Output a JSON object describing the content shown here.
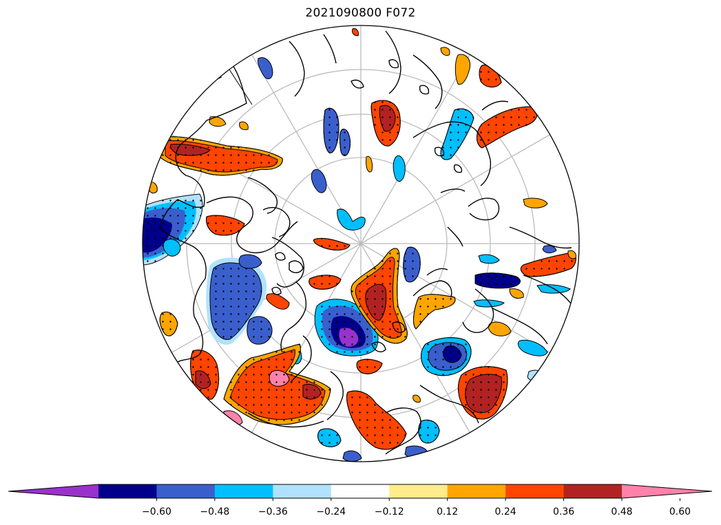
{
  "map": {
    "title": "2021090800 F072",
    "projection": "north-polar-stereographic",
    "graticule": true,
    "stipple": "significance"
  },
  "colorbar": {
    "extend": "both",
    "colors": [
      "#9932cc",
      "#00008b",
      "#3a5fcd",
      "#00bfff",
      "#b0e2ff",
      "#ffffff",
      "#ffec8b",
      "#ffa500",
      "#ff4500",
      "#b22222",
      "#ff82ab"
    ],
    "ticks": [
      "−0.60",
      "−0.48",
      "−0.36",
      "−0.24",
      "−0.12",
      "0.12",
      "0.24",
      "0.36",
      "0.48",
      "0.60"
    ]
  },
  "colors": {
    "graticule": "#bbbbbb",
    "coastline": "#000000",
    "contour": "#000000"
  }
}
